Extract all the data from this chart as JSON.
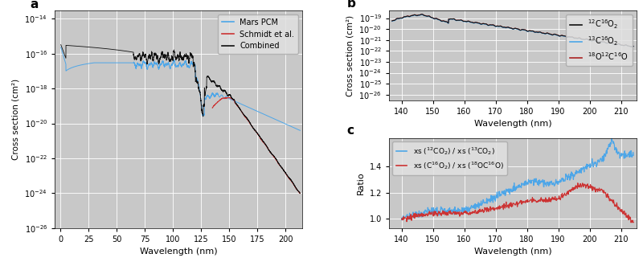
{
  "panel_a": {
    "title": "a",
    "xlabel": "Wavelength (nm)",
    "ylabel": "Cross section (cm²)",
    "xlim": [
      -5,
      215
    ],
    "ylim": [
      1e-26,
      3e-14
    ],
    "xticks": [
      0,
      25,
      50,
      75,
      100,
      125,
      150,
      175,
      200
    ],
    "legend": [
      "Mars PCM",
      "Schmidt et al.",
      "Combined"
    ],
    "colors": [
      "#4da6e8",
      "#cc3333",
      "#111111"
    ],
    "bg_color": "#c8c8c8"
  },
  "panel_b": {
    "title": "b",
    "xlabel": "Wavelength (nm)",
    "ylabel": "Cross section (cm²)",
    "xlim": [
      136,
      215
    ],
    "ylim": [
      3e-27,
      5e-19
    ],
    "xticks": [
      140,
      150,
      160,
      170,
      180,
      190,
      200,
      210
    ],
    "legend": [
      "$^{12}$C$^{16}$O$_2$",
      "$^{13}$C$^{16}$O$_2$",
      "$^{18}$O$^{12}$C$^{16}$O"
    ],
    "colors": [
      "#111111",
      "#4da6e8",
      "#aa2222"
    ],
    "bg_color": "#c8c8c8"
  },
  "panel_c": {
    "title": "c",
    "xlabel": "Wavelength (nm)",
    "ylabel": "Ratio",
    "xlim": [
      136,
      215
    ],
    "ylim": [
      0.93,
      1.62
    ],
    "yticks": [
      1.0,
      1.2,
      1.4
    ],
    "xticks": [
      140,
      150,
      160,
      170,
      180,
      190,
      200,
      210
    ],
    "legend": [
      "xs ($^{12}$CO$_2$) / xs ($^{13}$CO$_2$)",
      "xs (C$^{16}$O$_2$) / xs ($^{18}$OC$^{16}$O)"
    ],
    "colors": [
      "#4da6e8",
      "#cc3333"
    ],
    "bg_color": "#c8c8c8"
  }
}
